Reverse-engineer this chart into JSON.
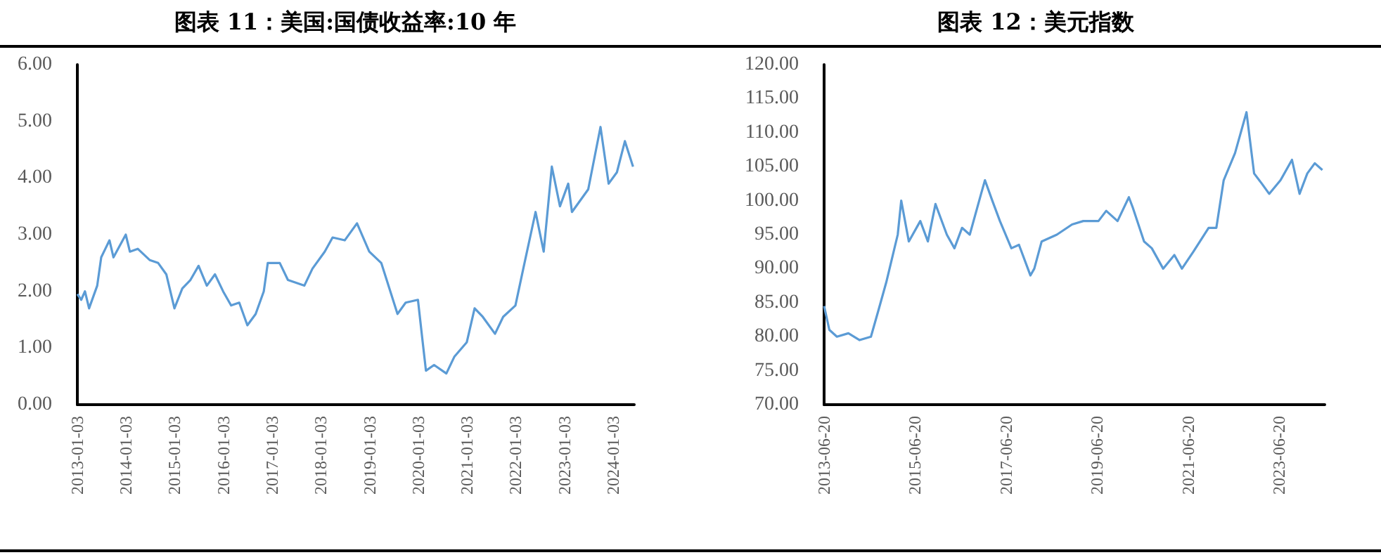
{
  "chart_data": [
    {
      "type": "line",
      "title": "图表 11：美国:国债收益率:10 年",
      "x": [
        "2013-01-03",
        "2013-02",
        "2013-03",
        "2013-04",
        "2013-06",
        "2013-07",
        "2013-08",
        "2013-09",
        "2013-10",
        "2014-01",
        "2014-02",
        "2014-04",
        "2014-07",
        "2014-09",
        "2014-11",
        "2015-01",
        "2015-03",
        "2015-05",
        "2015-07",
        "2015-09",
        "2015-11",
        "2016-01",
        "2016-03",
        "2016-05",
        "2016-07",
        "2016-09",
        "2016-11",
        "2016-12",
        "2017-03",
        "2017-05",
        "2017-09",
        "2017-11",
        "2018-02",
        "2018-04",
        "2018-07",
        "2018-10",
        "2019-01",
        "2019-04",
        "2019-08",
        "2019-10",
        "2020-01",
        "2020-02",
        "2020-03",
        "2020-05",
        "2020-08",
        "2020-10",
        "2021-01",
        "2021-03",
        "2021-05",
        "2021-08",
        "2021-10",
        "2022-01",
        "2022-03",
        "2022-06",
        "2022-08",
        "2022-10",
        "2022-12",
        "2023-02",
        "2023-03",
        "2023-07",
        "2023-10",
        "2023-12",
        "2024-02",
        "2024-04",
        "2024-06"
      ],
      "series": [
        {
          "color": "#5b9bd5",
          "values": [
            1.95,
            1.85,
            2.0,
            1.7,
            2.1,
            2.6,
            2.75,
            2.9,
            2.6,
            3.0,
            2.7,
            2.75,
            2.55,
            2.5,
            2.3,
            1.7,
            2.05,
            2.2,
            2.45,
            2.1,
            2.3,
            2.0,
            1.75,
            1.8,
            1.4,
            1.6,
            2.0,
            2.5,
            2.5,
            2.2,
            2.1,
            2.4,
            2.7,
            2.95,
            2.9,
            3.2,
            2.7,
            2.5,
            1.6,
            1.8,
            1.85,
            1.2,
            0.6,
            0.7,
            0.55,
            0.85,
            1.1,
            1.7,
            1.55,
            1.25,
            1.55,
            1.75,
            2.4,
            3.4,
            2.7,
            4.2,
            3.5,
            3.9,
            3.4,
            3.8,
            4.9,
            3.9,
            4.1,
            4.65,
            4.2
          ]
        }
      ],
      "xlim": [
        "2013-01-03",
        "2024-06-10"
      ],
      "xticks": [
        {
          "value": "2013-01-03",
          "label": "2013-01-03"
        },
        {
          "value": "2014-01-03",
          "label": "2014-01-03"
        },
        {
          "value": "2015-01-03",
          "label": "2015-01-03"
        },
        {
          "value": "2016-01-03",
          "label": "2016-01-03"
        },
        {
          "value": "2017-01-03",
          "label": "2017-01-03"
        },
        {
          "value": "2018-01-03",
          "label": "2018-01-03"
        },
        {
          "value": "2019-01-03",
          "label": "2019-01-03"
        },
        {
          "value": "2020-01-03",
          "label": "2020-01-03"
        },
        {
          "value": "2021-01-03",
          "label": "2021-01-03"
        },
        {
          "value": "2022-01-03",
          "label": "2022-01-03"
        },
        {
          "value": "2023-01-03",
          "label": "2023-01-03"
        },
        {
          "value": "2024-01-03",
          "label": "2024-01-03"
        }
      ],
      "ylim": [
        0,
        6
      ],
      "yticks": [
        {
          "value": 0,
          "label": "0.00"
        },
        {
          "value": 1,
          "label": "1.00"
        },
        {
          "value": 2,
          "label": "2.00"
        },
        {
          "value": 3,
          "label": "3.00"
        },
        {
          "value": 4,
          "label": "4.00"
        },
        {
          "value": 5,
          "label": "5.00"
        },
        {
          "value": 6,
          "label": "6.00"
        }
      ],
      "grid": false,
      "marker": "none",
      "line_style": "solid"
    },
    {
      "type": "line",
      "title": "图表 12：美元指数",
      "x": [
        "2013-06-20",
        "2013-08",
        "2013-10",
        "2014-01",
        "2014-04",
        "2014-07",
        "2014-09",
        "2014-11",
        "2015-02",
        "2015-03",
        "2015-05",
        "2015-08",
        "2015-10",
        "2015-12",
        "2016-03",
        "2016-05",
        "2016-07",
        "2016-09",
        "2016-12",
        "2017-01",
        "2017-03",
        "2017-05",
        "2017-08",
        "2017-10",
        "2018-01",
        "2018-02",
        "2018-04",
        "2018-08",
        "2018-12",
        "2019-03",
        "2019-07",
        "2019-09",
        "2019-12",
        "2020-03",
        "2020-04",
        "2020-07",
        "2020-09",
        "2020-12",
        "2021-03",
        "2021-05",
        "2021-08",
        "2021-12",
        "2022-02",
        "2022-04",
        "2022-07",
        "2022-10",
        "2022-12",
        "2023-02",
        "2023-04",
        "2023-07",
        "2023-10",
        "2023-12",
        "2024-02",
        "2024-04",
        "2024-06"
      ],
      "series": [
        {
          "color": "#5b9bd5",
          "values": [
            84.5,
            81,
            80,
            80.5,
            79.5,
            80,
            84,
            88,
            95,
            100,
            94,
            97,
            94,
            99.5,
            95,
            93,
            96,
            95,
            101,
            103,
            100,
            97,
            93,
            93.5,
            89,
            90,
            94,
            95,
            96.5,
            97,
            97,
            98.5,
            97,
            100.5,
            99,
            94,
            93,
            90,
            92,
            90,
            92.5,
            96,
            96,
            103,
            107,
            113,
            104,
            102.5,
            101,
            103,
            106,
            101,
            104,
            105.5,
            104.5
          ]
        }
      ],
      "xlim": [
        "2013-06-20",
        "2024-06-20"
      ],
      "xticks": [
        {
          "value": "2013-06-20",
          "label": "2013-06-20"
        },
        {
          "value": "2015-06-20",
          "label": "2015-06-20"
        },
        {
          "value": "2017-06-20",
          "label": "2017-06-20"
        },
        {
          "value": "2019-06-20",
          "label": "2019-06-20"
        },
        {
          "value": "2021-06-20",
          "label": "2021-06-20"
        },
        {
          "value": "2023-06-20",
          "label": "2023-06-20"
        }
      ],
      "ylim": [
        70,
        120
      ],
      "yticks": [
        {
          "value": 70,
          "label": "70.00"
        },
        {
          "value": 75,
          "label": "75.00"
        },
        {
          "value": 80,
          "label": "80.00"
        },
        {
          "value": 85,
          "label": "85.00"
        },
        {
          "value": 90,
          "label": "90.00"
        },
        {
          "value": 95,
          "label": "95.00"
        },
        {
          "value": 100,
          "label": "100.00"
        },
        {
          "value": 105,
          "label": "105.00"
        },
        {
          "value": 110,
          "label": "110.00"
        },
        {
          "value": 115,
          "label": "115.00"
        },
        {
          "value": 120,
          "label": "120.00"
        }
      ],
      "grid": false,
      "marker": "none",
      "line_style": "solid"
    }
  ]
}
